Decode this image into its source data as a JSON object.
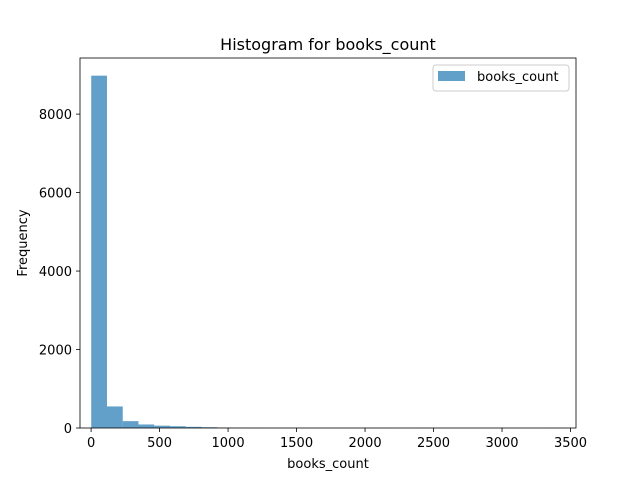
{
  "chart_data": {
    "type": "bar",
    "title": "Histogram for books_count",
    "xlabel": "books_count",
    "ylabel": "Frequency",
    "xlim": [
      -81,
      3540
    ],
    "ylim": [
      0,
      9430
    ],
    "x_ticks": [
      0,
      500,
      1000,
      1500,
      2000,
      2500,
      3000,
      3500
    ],
    "y_ticks": [
      0,
      2000,
      4000,
      6000,
      8000
    ],
    "bin_edges": [
      1,
      116,
      231,
      346,
      461,
      576,
      691,
      806,
      921,
      1036,
      1151,
      1266,
      1381,
      1496,
      1611,
      1726,
      1841,
      1956,
      2071,
      2186,
      2301,
      2416,
      2531,
      2646,
      2761,
      2876,
      2991,
      3106,
      3221,
      3336,
      3451
    ],
    "series": [
      {
        "name": "books_count",
        "color": "#1f77b4",
        "opacity": 0.7,
        "values": [
          8980,
          550,
          175,
          90,
          60,
          45,
          30,
          20,
          10,
          5,
          4,
          3,
          2,
          2,
          1,
          1,
          1,
          1,
          1,
          0,
          0,
          1,
          0,
          0,
          0,
          0,
          0,
          0,
          0,
          1
        ]
      }
    ],
    "legend": {
      "position": "top-right",
      "label": "books_count"
    },
    "grid": false
  }
}
